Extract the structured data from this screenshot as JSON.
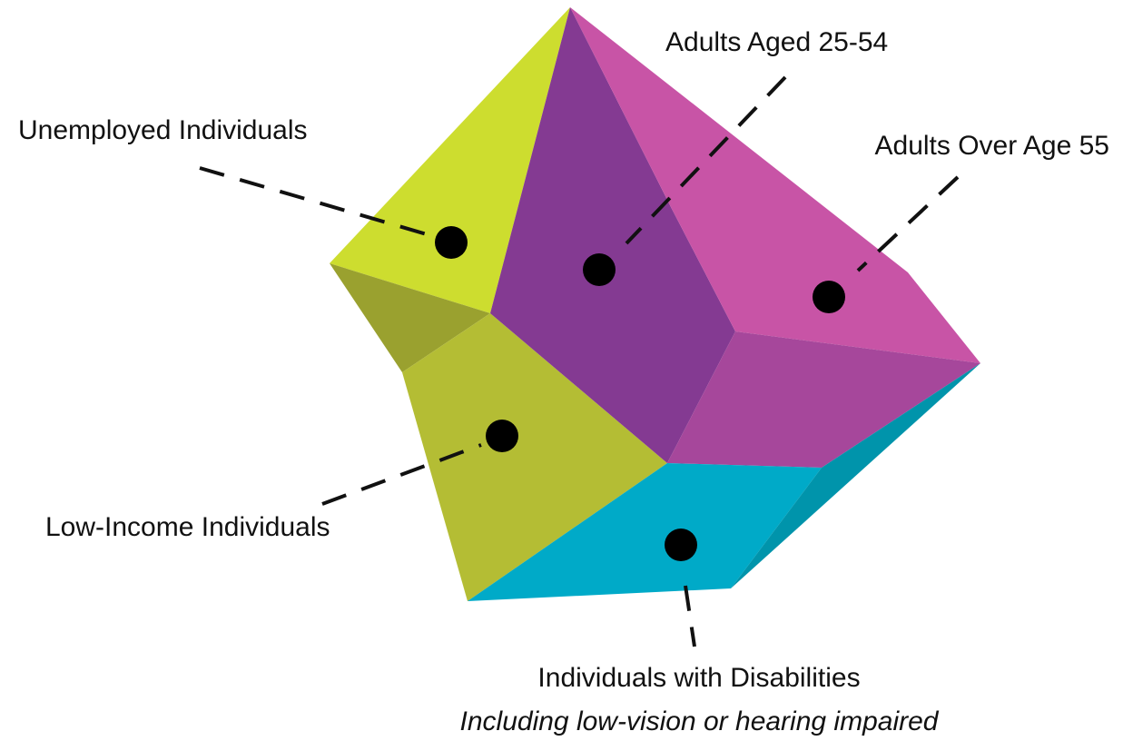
{
  "labels": {
    "unemployed": "Unemployed Individuals",
    "adults_25_54": "Adults Aged 25-54",
    "adults_over_55": "Adults Over Age 55",
    "low_income": "Low-Income Individuals",
    "disabilities": "Individuals with Disabilities",
    "disabilities_note": "Including low-vision or hearing impaired"
  }
}
